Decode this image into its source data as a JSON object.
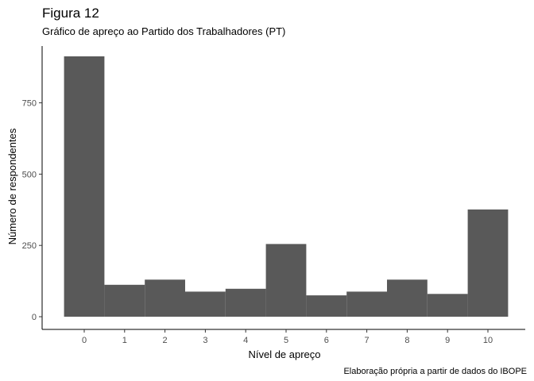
{
  "chart_data": {
    "type": "bar",
    "title": "Figura 12",
    "subtitle": "Gráfico de apreço ao Partido dos Trabalhadores (PT)",
    "xlabel": "Nível de apreço",
    "ylabel": "Número de respondentes",
    "caption": "Elaboração própria a partir de dados do IBOPE",
    "categories": [
      "0",
      "1",
      "2",
      "3",
      "4",
      "5",
      "6",
      "7",
      "8",
      "9",
      "10"
    ],
    "values": [
      913,
      112,
      130,
      88,
      98,
      255,
      75,
      88,
      130,
      80,
      376
    ],
    "yticks": [
      0,
      250,
      500,
      750
    ],
    "ylim": [
      0,
      913
    ],
    "grid": false,
    "bar_color": "#595959",
    "axis_color": "#000000"
  }
}
